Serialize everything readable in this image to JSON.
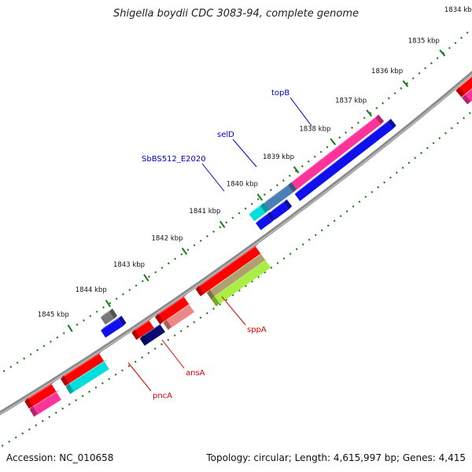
{
  "title": "Shigella boydii CDC 3083-94, complete genome",
  "footer": {
    "accession": "Accession: NC_010658",
    "topology": "Topology: circular; Length: 4,615,997 bp; Genes: 4,415"
  },
  "ticks": [
    {
      "label": "1834 kbp"
    },
    {
      "label": "1835 kbp"
    },
    {
      "label": "1836 kbp"
    },
    {
      "label": "1837 kbp"
    },
    {
      "label": "1838 kbp"
    },
    {
      "label": "1839 kbp"
    },
    {
      "label": "1840 kbp"
    },
    {
      "label": "1841 kbp"
    },
    {
      "label": "1842 kbp"
    },
    {
      "label": "1843 kbp"
    },
    {
      "label": "1844 kbp"
    },
    {
      "label": "1845 kbp"
    }
  ],
  "gene_labels": [
    {
      "name": "topB",
      "color": "#0000cc"
    },
    {
      "name": "selD",
      "color": "#0000cc"
    },
    {
      "name": "SbBS512_E2020",
      "color": "#0000cc"
    },
    {
      "name": "sppA",
      "color": "#dd0000"
    },
    {
      "name": "ansA",
      "color": "#dd0000"
    },
    {
      "name": "pncA",
      "color": "#dd0000"
    }
  ],
  "colors": {
    "backbone": "#8c8c8c",
    "ruler": "#1a7a1a",
    "red": "#ff0000",
    "pink": "#ff3399",
    "blue": "#1010ee",
    "steelblue": "#4a7fb5",
    "cyan": "#00dddd",
    "gray": "#777777",
    "navy": "#0a0a70",
    "salmon": "#ee8888",
    "olive": "#b0a070",
    "lime": "#aaee44"
  }
}
